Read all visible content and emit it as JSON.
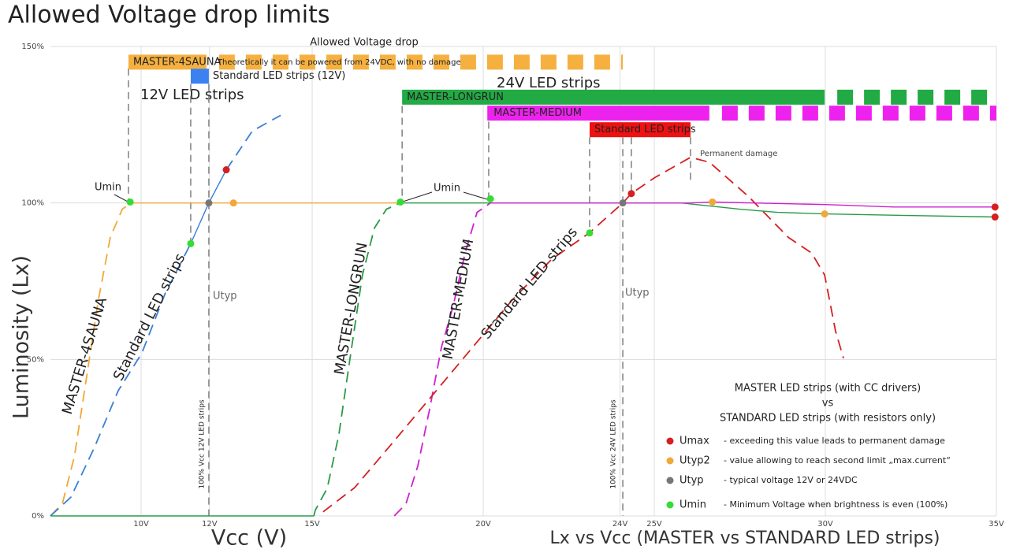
{
  "chart_data": {
    "type": "line",
    "title": "Allowed Voltage drop limits",
    "subtitle": "Allowed Voltage drop",
    "x_label": "Vcc (V)",
    "caption": "Lx vs Vcc (MASTER vs STANDARD LED strips)",
    "y_label": "Luminosity (Lx)",
    "xlim": [
      7.35,
      35
    ],
    "ylim": [
      0,
      150
    ],
    "xticks": [
      {
        "value": 10,
        "label": "10V"
      },
      {
        "value": 12,
        "label": "12V"
      },
      {
        "value": 15,
        "label": "15V"
      },
      {
        "value": 20,
        "label": "20V"
      },
      {
        "value": 24,
        "label": "24V"
      },
      {
        "value": 25,
        "label": "25V"
      },
      {
        "value": 30,
        "label": "30V"
      },
      {
        "value": 35,
        "label": "35V"
      }
    ],
    "yticks": [
      {
        "value": 0,
        "label": "0%"
      },
      {
        "value": 50,
        "label": "50%"
      },
      {
        "value": 100,
        "label": "100%"
      },
      {
        "value": 150,
        "label": "150%"
      }
    ],
    "grid": true,
    "series": [
      {
        "name": "MASTER-4SAUNA",
        "color": "#f0a838",
        "dashed": true,
        "x": [
          7.35,
          7.7,
          8.05,
          8.4,
          8.75,
          9.1,
          9.45,
          9.7
        ],
        "values": [
          0,
          4,
          19,
          44,
          69,
          89,
          98,
          100
        ]
      },
      {
        "name": "Standard LED strips",
        "color": "#3a7fd5",
        "dashed": true,
        "x": [
          7.35,
          7.95,
          8.64,
          9.33,
          10.02,
          10.7,
          11.45
        ],
        "values": [
          0,
          6,
          22,
          40,
          52,
          71,
          87
        ]
      },
      {
        "name": "MASTER-LONGRUN",
        "color": "#2a9a48",
        "dashed": true,
        "x": [
          15.05,
          15.09,
          15.44,
          15.78,
          16.13,
          16.47,
          16.82,
          17.17,
          17.58
        ],
        "values": [
          0,
          1.8,
          8.8,
          26,
          52,
          77,
          92,
          98,
          100
        ]
      },
      {
        "name": "MASTER-MEDIUM",
        "color": "#d020d0",
        "dashed": true,
        "x": [
          17.4,
          17.74,
          18.09,
          18.43,
          18.78,
          19.12,
          19.47,
          19.82,
          20.21
        ],
        "values": [
          0,
          3.8,
          16,
          34,
          54,
          67,
          84,
          97,
          100
        ]
      },
      {
        "name": "Standard LED strips",
        "color": "#d42020",
        "dashed": true,
        "x": [
          15.32,
          16.24,
          17.4,
          18.55,
          19.7,
          20.85,
          22.0,
          23.1,
          24.08,
          24.33,
          25.0,
          26.06,
          26.61,
          27.76,
          28.92,
          29.6,
          29.98,
          30.3,
          30.53
        ],
        "values": [
          1.3,
          9,
          24,
          39,
          54,
          69,
          82,
          90.4,
          100,
          103,
          108,
          114.6,
          113,
          102,
          89,
          84,
          77,
          59,
          50.4
        ]
      },
      {
        "color": "#3a7fd5",
        "dashed": false,
        "x": [
          11.45,
          11.98,
          12.49
        ],
        "values": [
          87,
          100,
          110.6
        ]
      },
      {
        "color": "#3a7fd5",
        "dashed": true,
        "x": [
          12.49,
          13.25,
          14.08
        ],
        "values": [
          110.6,
          123,
          128
        ]
      },
      {
        "color": "#f0a838",
        "dashed": false,
        "x": [
          9.7,
          17.58
        ],
        "values": [
          100,
          100
        ]
      },
      {
        "color": "#2a9a48",
        "dashed": false,
        "x": [
          17.58,
          25.8,
          27.5,
          28.6,
          30,
          32.4,
          35
        ],
        "values": [
          100,
          100,
          98,
          97,
          96.5,
          96,
          95.5
        ]
      },
      {
        "color": "#d020d0",
        "dashed": false,
        "x": [
          20.21,
          26,
          26.7,
          30,
          32,
          35
        ],
        "values": [
          100,
          100,
          100.3,
          99.5,
          98.7,
          98.7
        ]
      },
      {
        "color": "#2a9a48",
        "dashed": false,
        "x": [
          7.35,
          15.05
        ],
        "values": [
          0,
          0
        ]
      }
    ],
    "markers": [
      {
        "name": "Umax",
        "description": "- exceeding this value leads to permanent damage",
        "color": "#d42020",
        "x": [
          12.49,
          24.33,
          34.96,
          34.96
        ],
        "values": [
          110.6,
          103,
          98.7,
          95.5
        ]
      },
      {
        "name": "Utyp2",
        "description": "- value allowing to reach second limit „max.current“",
        "color": "#f0a838",
        "x": [
          12.7,
          26.7,
          29.98
        ],
        "values": [
          100,
          100.3,
          96.5
        ]
      },
      {
        "name": "Utyp",
        "description": "- typical voltage 12V or 24VDC",
        "color": "#777777",
        "x": [
          11.98,
          24.08
        ],
        "values": [
          100,
          100
        ]
      },
      {
        "name": "Umin",
        "description": "- Minimum Voltage when brightness is even (100%)",
        "color": "#33dd33",
        "x": [
          9.68,
          11.45,
          17.58,
          20.21,
          23.11
        ],
        "values": [
          100.3,
          87,
          100.3,
          101.3,
          90.4
        ]
      }
    ],
    "ranges": [
      {
        "label": "MASTER-4SAUNA",
        "note": "Theoretically it can be powered from 24VDC, with no damage",
        "color": "#f5b040",
        "y": 145,
        "solid": [
          9.63,
          11.91
        ],
        "dashed": [
          11.91,
          24.08
        ]
      },
      {
        "label": "Standard LED strips (12V)",
        "color": "#3b82f0",
        "y": 140.5,
        "solid": [
          11.45,
          11.98
        ]
      },
      {
        "label": "MASTER-LONGRUN",
        "color": "#22aa44",
        "y": 133.8,
        "solid": [
          17.63,
          29.98
        ],
        "dashed": [
          29.98,
          35
        ]
      },
      {
        "label": "MASTER-MEDIUM",
        "color": "#ee22ee",
        "y": 128.7,
        "solid": [
          20.12,
          26.61
        ],
        "dashed": [
          26.61,
          35
        ]
      },
      {
        "label": "Standard LED strips",
        "color": "#ee1111",
        "y": 123.4,
        "solid": [
          23.11,
          26.06
        ]
      }
    ],
    "guides": [
      {
        "x": 9.63,
        "y": [
          143,
          100
        ]
      },
      {
        "x": 11.45,
        "y": [
          138,
          87
        ]
      },
      {
        "x": 11.98,
        "y": [
          138,
          0
        ]
      },
      {
        "x": 17.63,
        "y": [
          131,
          100
        ]
      },
      {
        "x": 20.16,
        "y": [
          126,
          100
        ]
      },
      {
        "x": 23.11,
        "y": [
          121,
          90
        ]
      },
      {
        "x": 24.08,
        "y": [
          121,
          0
        ]
      },
      {
        "x": 24.33,
        "y": [
          121,
          103
        ]
      },
      {
        "x": 26.06,
        "y": [
          121,
          107
        ]
      }
    ],
    "annotations": {
      "group_12v": "12V LED strips",
      "group_24v": "24V LED strips",
      "umin_1": "Umin",
      "umin_2": "Umin",
      "utyp_1": "Utyp",
      "utyp_2": "Utyp",
      "damage": "Permanent damage",
      "vcc_12": "100% Vcc 12V LED strips",
      "vcc_24": "100% Vcc 24V LED strips"
    },
    "legend_title": [
      "MASTER LED strips (with CC drivers)",
      "vs",
      "STANDARD LED strips (with resistors only)"
    ]
  }
}
